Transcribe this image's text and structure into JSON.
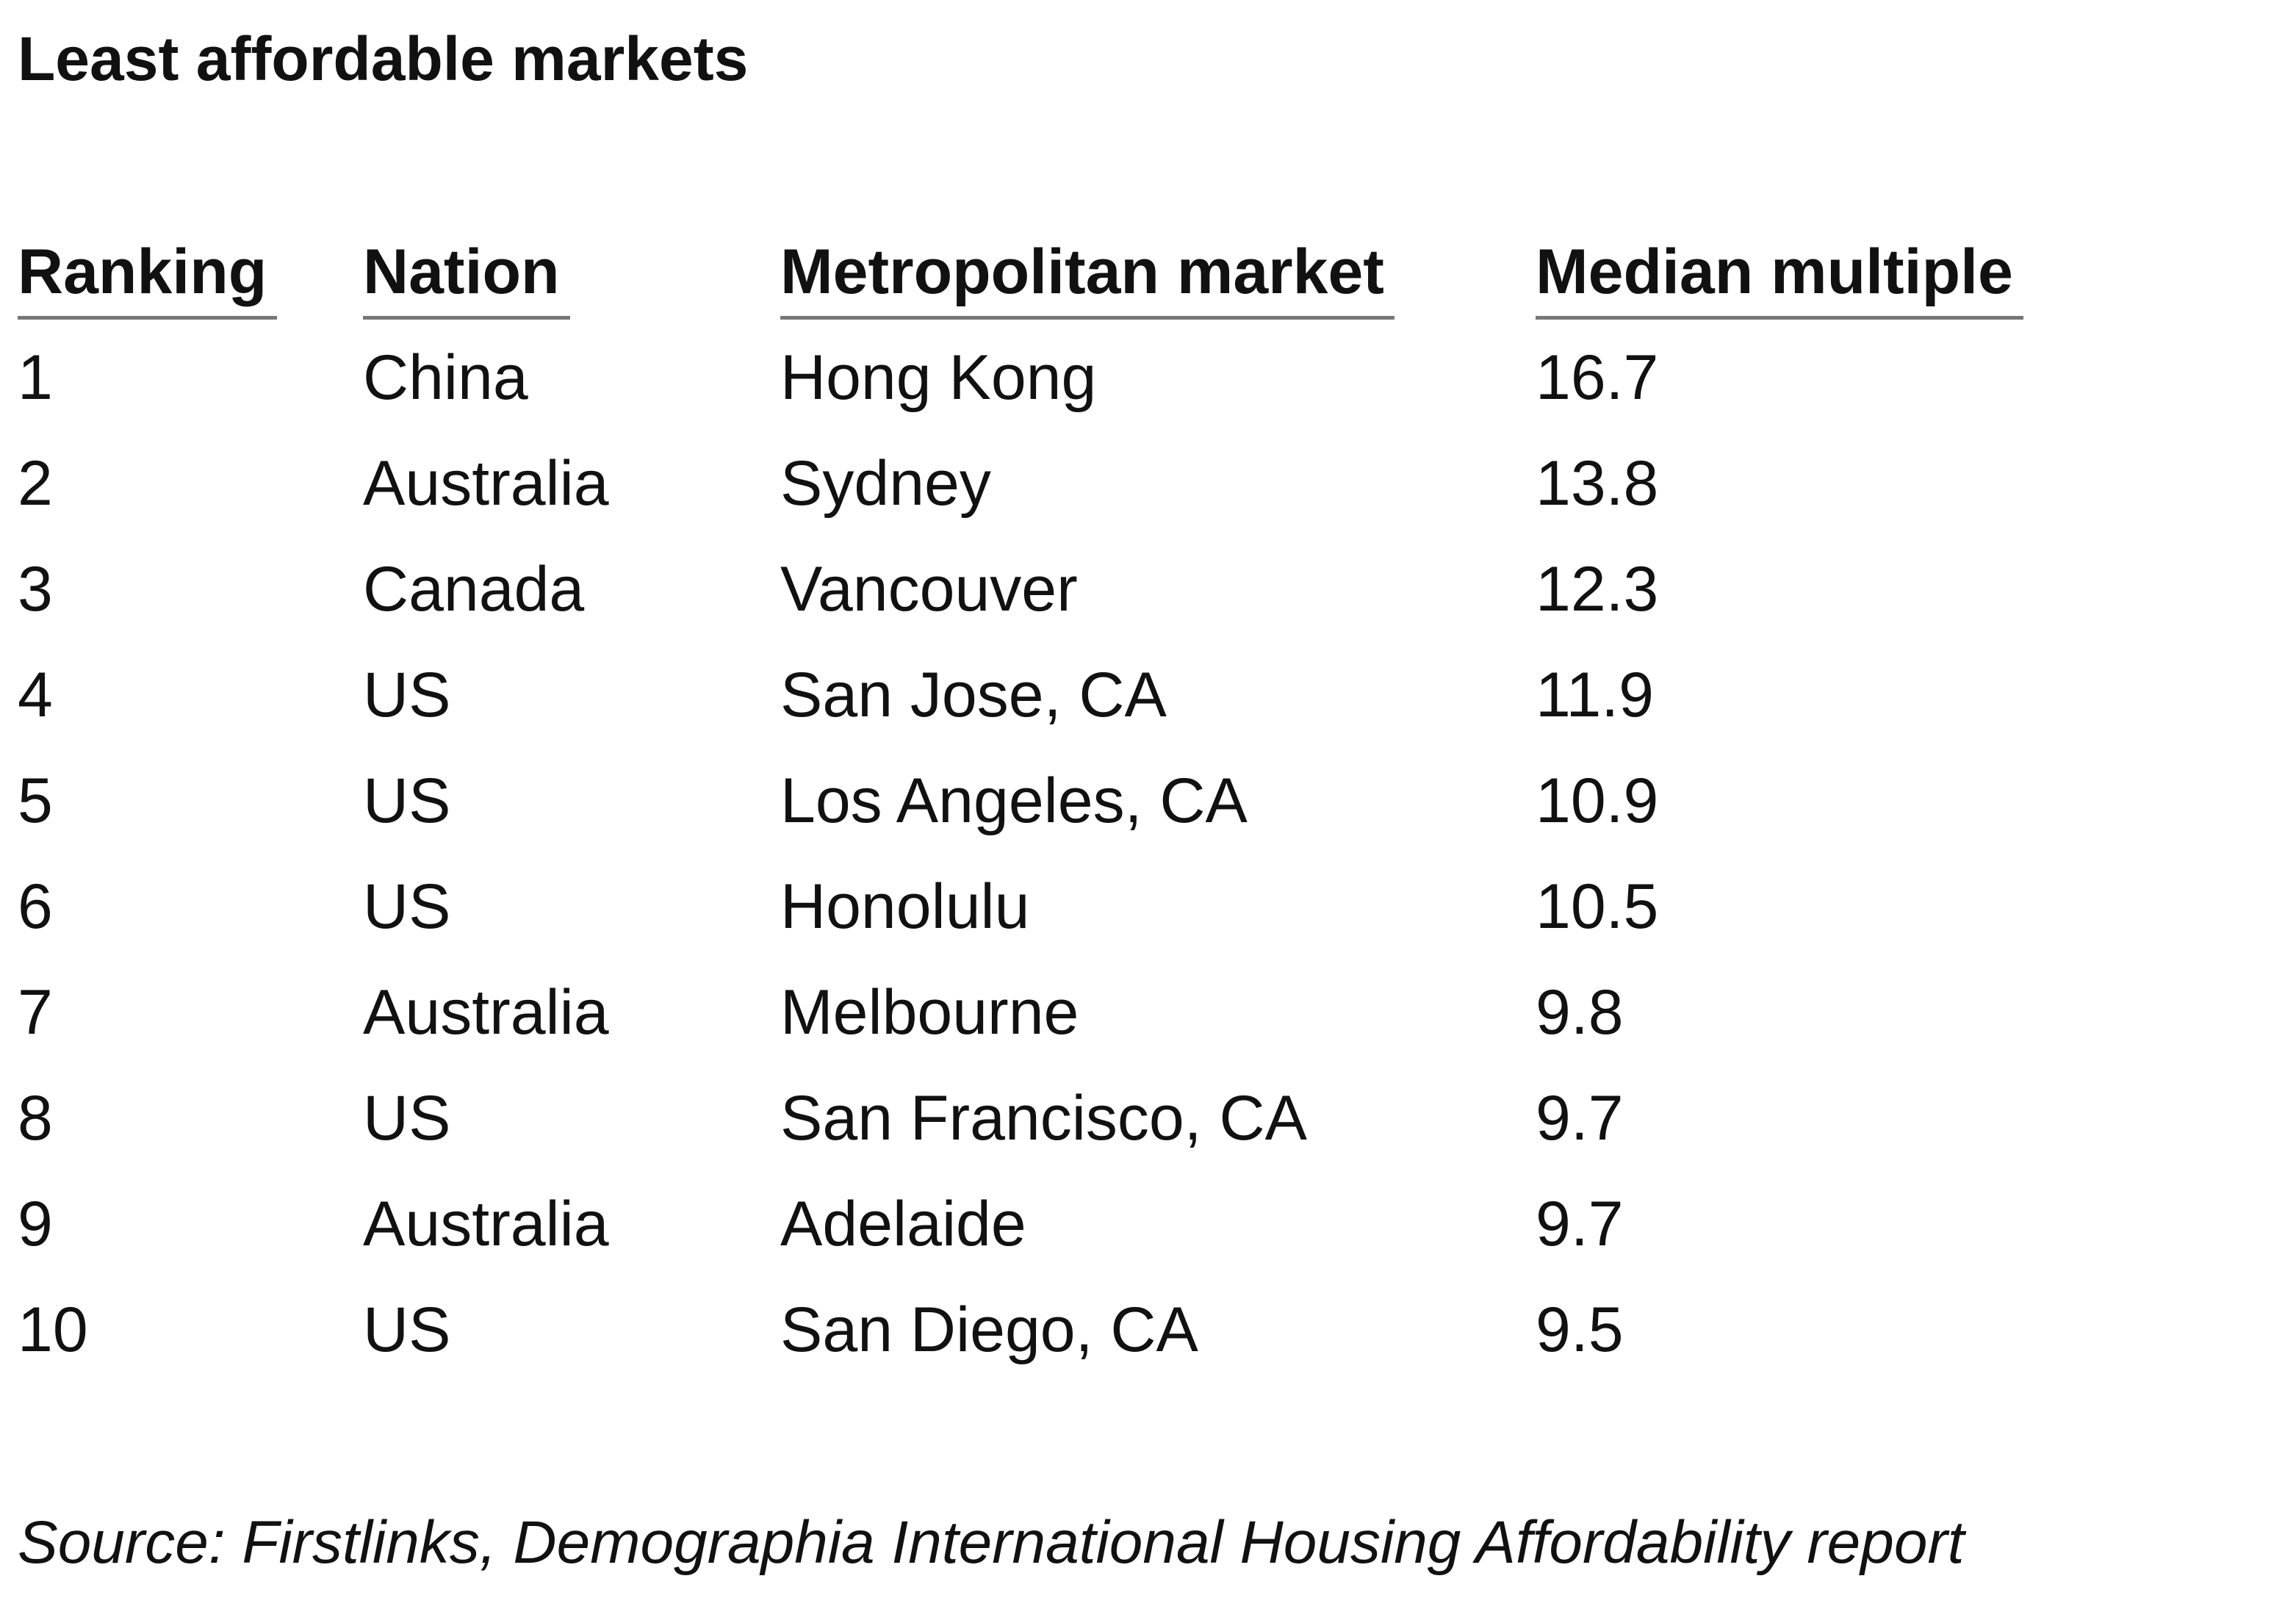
{
  "title": "Least affordable markets",
  "table": {
    "headers": [
      "Ranking",
      "Nation",
      "Metropolitan market",
      "Median multiple"
    ],
    "rows": [
      [
        "1",
        "China",
        "Hong Kong",
        "16.7"
      ],
      [
        "2",
        "Australia",
        "Sydney",
        "13.8"
      ],
      [
        "3",
        "Canada",
        "Vancouver",
        "12.3"
      ],
      [
        "4",
        "US",
        "San Jose, CA",
        "11.9"
      ],
      [
        "5",
        "US",
        "Los Angeles, CA",
        "10.9"
      ],
      [
        "6",
        "US",
        "Honolulu",
        "10.5"
      ],
      [
        "7",
        "Australia",
        "Melbourne",
        "9.8"
      ],
      [
        "8",
        "US",
        "San Francisco, CA",
        "9.7"
      ],
      [
        "9",
        "Australia",
        "Adelaide",
        "9.7"
      ],
      [
        "10",
        "US",
        "San Diego, CA",
        "9.5"
      ]
    ]
  },
  "source": "Source: Firstlinks, Demographia International Housing Affordability report"
}
